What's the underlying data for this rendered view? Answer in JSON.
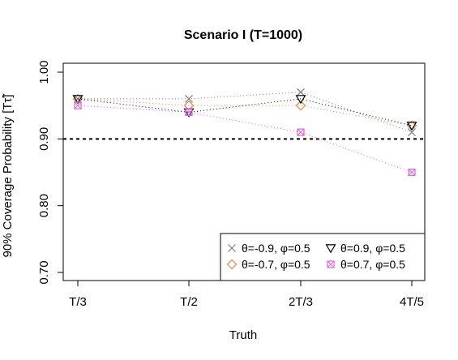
{
  "chart_data": {
    "type": "line",
    "title": "Scenario I (T=1000)",
    "xlabel": "Truth",
    "ylabel": "90% Coverage Probability [Tτ̃]",
    "categories": [
      "T/3",
      "T/2",
      "2T/3",
      "4T/5"
    ],
    "ylim": [
      0.7,
      1.0
    ],
    "yticks": [
      "0.70",
      "0.80",
      "0.90",
      "1.00"
    ],
    "reference_line": 0.9,
    "grid": false,
    "legend_position": "bottom-right",
    "series": [
      {
        "name": "θ=-0.9, φ=0.5",
        "values": [
          0.96,
          0.96,
          0.97,
          0.91
        ],
        "color": "#7f7f7f",
        "marker": "x"
      },
      {
        "name": "θ=-0.7, φ=0.5",
        "values": [
          0.96,
          0.95,
          0.95,
          0.92
        ],
        "color": "#e08a4f",
        "marker": "diamond"
      },
      {
        "name": "θ=0.9, φ=0.5",
        "values": [
          0.96,
          0.94,
          0.96,
          0.92
        ],
        "color": "#000000",
        "marker": "triangle-down"
      },
      {
        "name": "θ=0.7, φ=0.5",
        "values": [
          0.95,
          0.94,
          0.91,
          0.85
        ],
        "color": "#d966d9",
        "marker": "square-x"
      }
    ]
  }
}
